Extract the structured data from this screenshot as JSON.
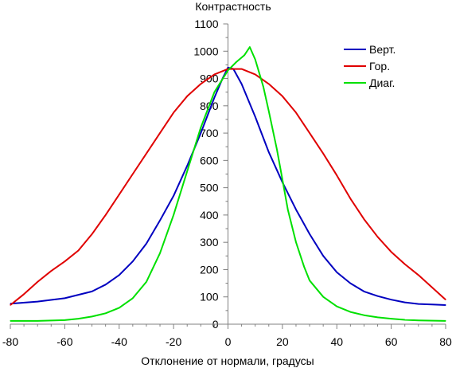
{
  "chart_data": {
    "type": "line",
    "ylabel": "Контрастность",
    "xlabel": "Отклонение от нормали, градусы",
    "xlim": [
      -80,
      80
    ],
    "ylim": [
      0,
      1100
    ],
    "xticks": [
      -80,
      -60,
      -40,
      -20,
      0,
      20,
      40,
      60,
      80
    ],
    "yticks": [
      0,
      100,
      200,
      300,
      400,
      500,
      600,
      700,
      800,
      900,
      1000,
      1100
    ],
    "legend_position": "top-right",
    "grid": false,
    "series": [
      {
        "name": "Верт.",
        "color": "#0000c0",
        "points": [
          [
            -80,
            75
          ],
          [
            -70,
            83
          ],
          [
            -60,
            95
          ],
          [
            -50,
            120
          ],
          [
            -45,
            145
          ],
          [
            -40,
            180
          ],
          [
            -35,
            230
          ],
          [
            -30,
            295
          ],
          [
            -25,
            380
          ],
          [
            -20,
            470
          ],
          [
            -15,
            580
          ],
          [
            -10,
            700
          ],
          [
            -5,
            830
          ],
          [
            -2,
            900
          ],
          [
            0,
            940
          ],
          [
            2,
            935
          ],
          [
            5,
            880
          ],
          [
            10,
            760
          ],
          [
            15,
            630
          ],
          [
            20,
            520
          ],
          [
            25,
            420
          ],
          [
            30,
            330
          ],
          [
            35,
            250
          ],
          [
            40,
            190
          ],
          [
            45,
            150
          ],
          [
            50,
            120
          ],
          [
            55,
            103
          ],
          [
            60,
            90
          ],
          [
            65,
            80
          ],
          [
            70,
            74
          ],
          [
            75,
            72
          ],
          [
            80,
            70
          ]
        ]
      },
      {
        "name": "Гор.",
        "color": "#e00000",
        "points": [
          [
            -80,
            70
          ],
          [
            -75,
            110
          ],
          [
            -70,
            155
          ],
          [
            -65,
            195
          ],
          [
            -60,
            230
          ],
          [
            -55,
            270
          ],
          [
            -50,
            330
          ],
          [
            -45,
            400
          ],
          [
            -40,
            475
          ],
          [
            -35,
            550
          ],
          [
            -30,
            625
          ],
          [
            -25,
            700
          ],
          [
            -20,
            775
          ],
          [
            -15,
            835
          ],
          [
            -10,
            880
          ],
          [
            -5,
            915
          ],
          [
            0,
            935
          ],
          [
            5,
            935
          ],
          [
            10,
            915
          ],
          [
            15,
            880
          ],
          [
            20,
            835
          ],
          [
            25,
            775
          ],
          [
            30,
            700
          ],
          [
            35,
            625
          ],
          [
            40,
            545
          ],
          [
            45,
            460
          ],
          [
            50,
            385
          ],
          [
            55,
            320
          ],
          [
            60,
            265
          ],
          [
            65,
            220
          ],
          [
            70,
            180
          ],
          [
            75,
            135
          ],
          [
            80,
            90
          ]
        ]
      },
      {
        "name": "Диаг.",
        "color": "#00e000",
        "points": [
          [
            -80,
            12
          ],
          [
            -70,
            12
          ],
          [
            -60,
            15
          ],
          [
            -55,
            20
          ],
          [
            -50,
            28
          ],
          [
            -45,
            40
          ],
          [
            -40,
            60
          ],
          [
            -35,
            95
          ],
          [
            -30,
            155
          ],
          [
            -25,
            260
          ],
          [
            -20,
            400
          ],
          [
            -15,
            560
          ],
          [
            -10,
            720
          ],
          [
            -5,
            850
          ],
          [
            0,
            930
          ],
          [
            3,
            960
          ],
          [
            6,
            985
          ],
          [
            8,
            1015
          ],
          [
            10,
            970
          ],
          [
            13,
            870
          ],
          [
            15,
            780
          ],
          [
            18,
            640
          ],
          [
            20,
            530
          ],
          [
            22,
            420
          ],
          [
            25,
            300
          ],
          [
            28,
            210
          ],
          [
            30,
            160
          ],
          [
            35,
            100
          ],
          [
            40,
            65
          ],
          [
            45,
            45
          ],
          [
            50,
            33
          ],
          [
            55,
            25
          ],
          [
            60,
            20
          ],
          [
            65,
            16
          ],
          [
            70,
            14
          ],
          [
            80,
            12
          ]
        ]
      }
    ]
  }
}
